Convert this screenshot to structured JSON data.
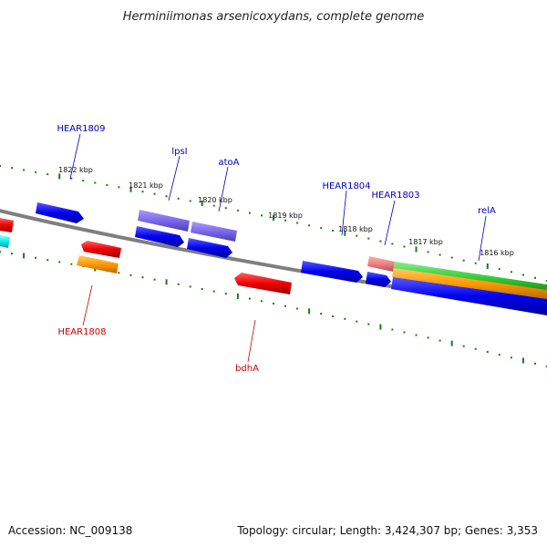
{
  "title": "Herminiimonas arsenicoxydans, complete genome",
  "footer": {
    "accession": "Accession: NC_009138",
    "summary": "Topology: circular; Length: 3,424,307 bp; Genes: 3,353"
  },
  "colors": {
    "backbone": "#808080",
    "ruler": "#1a7a1a",
    "forward_label": "#0000bb",
    "reverse_label": "#cc0000",
    "gene_blue": "#0000ee",
    "gene_purple": "#7b68ee",
    "gene_red": "#ee0000",
    "gene_orange": "#ff9900",
    "gene_green": "#33cc33",
    "gene_pink": "#f08080",
    "gene_cyan": "#00eeee"
  },
  "ticks": [
    "1822 kbp",
    "1821 kbp",
    "1820 kbp",
    "1819 kbp",
    "1818 kbp",
    "1817 kbp",
    "1816 kbp"
  ],
  "gene_labels": {
    "forward": [
      "HEAR1809",
      "lpsI",
      "atoA",
      "HEAR1804",
      "HEAR1803",
      "relA"
    ],
    "reverse": [
      "HEAR1808",
      "bdhA"
    ]
  }
}
